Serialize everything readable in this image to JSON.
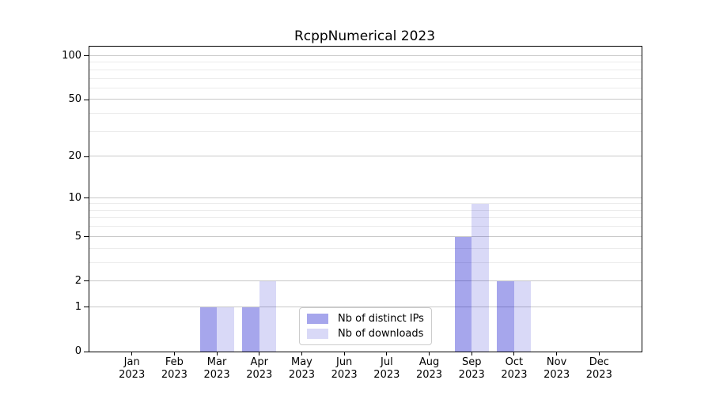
{
  "chart_data": {
    "type": "bar",
    "title": "RcppNumerical 2023",
    "categories": [
      "Jan",
      "Feb",
      "Mar",
      "Apr",
      "May",
      "Jun",
      "Jul",
      "Aug",
      "Sep",
      "Oct",
      "Nov",
      "Dec"
    ],
    "category_year": "2023",
    "series": [
      {
        "name": "Nb of distinct IPs",
        "color": "rgba(0,0,200,0.35)",
        "color_hex": "#a6a6ec",
        "values": [
          0,
          0,
          1,
          1,
          0,
          0,
          0,
          0,
          5,
          2,
          0,
          0
        ]
      },
      {
        "name": "Nb of downloads",
        "color": "rgba(0,0,200,0.15)",
        "color_hex": "#d9d9f7",
        "values": [
          0,
          0,
          1,
          2,
          0,
          0,
          0,
          0,
          9,
          2,
          0,
          0
        ]
      }
    ],
    "yscale": "log1p",
    "yticks": [
      0,
      1,
      2,
      5,
      10,
      20,
      50,
      100
    ],
    "minor_yticks": [
      3,
      4,
      6,
      7,
      8,
      9,
      30,
      40,
      60,
      70,
      80,
      90
    ],
    "ylim": [
      0,
      116
    ],
    "xlabel": "",
    "ylabel": "",
    "grid": "horizontal",
    "legend_position": "inside-bottom-center"
  },
  "colors": {
    "major_grid": "#c8c8c8",
    "minor_grid": "#ececec",
    "spine": "#000000",
    "background": "#ffffff"
  }
}
